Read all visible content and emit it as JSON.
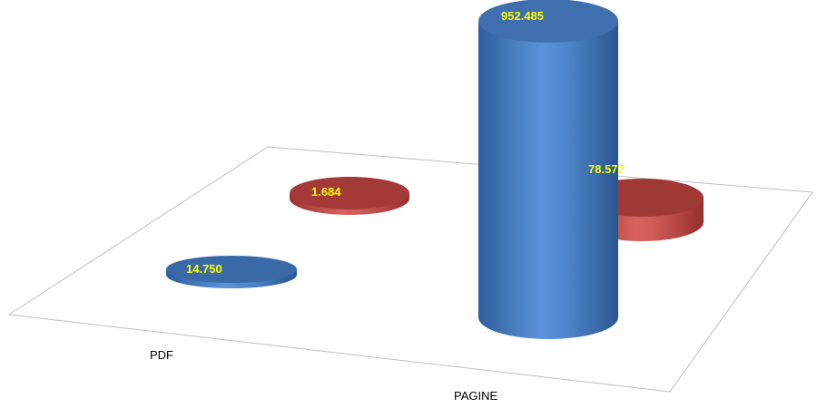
{
  "chart_data": {
    "type": "bar",
    "style": "3d-cylinder",
    "categories": [
      "PDF",
      "PAGINE"
    ],
    "series": [
      {
        "color": "#4a7fc4",
        "values": [
          14750,
          952485
        ],
        "labels": [
          "14.750",
          "952.485"
        ]
      },
      {
        "color": "#c0504d",
        "values": [
          1684,
          78577
        ],
        "labels": [
          "1.684",
          "78.577"
        ]
      }
    ],
    "legend": "none",
    "grid": false,
    "ylim": [
      0,
      952485
    ]
  }
}
